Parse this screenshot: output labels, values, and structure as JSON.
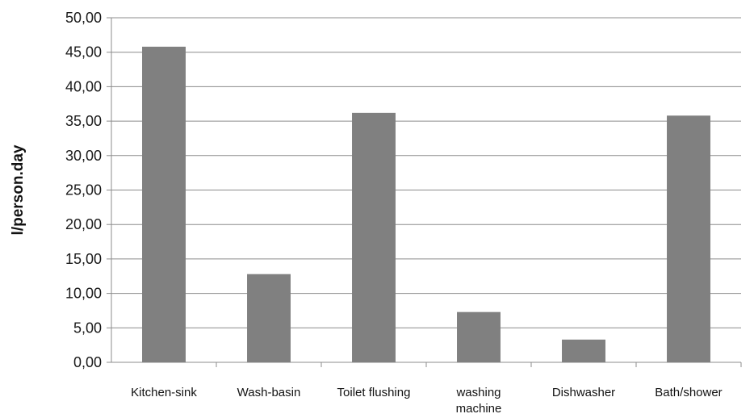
{
  "chart_data": {
    "type": "bar",
    "title": "",
    "xlabel": "",
    "ylabel": "l/person.day",
    "ylim": [
      0,
      50
    ],
    "ytick_step": 5,
    "ytick_labels": [
      "0,00",
      "5,00",
      "10,00",
      "15,00",
      "20,00",
      "25,00",
      "30,00",
      "35,00",
      "40,00",
      "45,00",
      "50,00"
    ],
    "categories": [
      [
        "Kitchen-sink"
      ],
      [
        "Wash-basin"
      ],
      [
        "Toilet flushing"
      ],
      [
        "washing",
        "machine"
      ],
      [
        "Dishwasher"
      ],
      [
        "Bath/shower"
      ]
    ],
    "values": [
      45.8,
      12.8,
      36.2,
      7.3,
      3.3,
      35.8
    ],
    "grid": true,
    "legend": "none",
    "colors": {
      "bar": "#808080",
      "grid": "#8c8c8c",
      "axis": "#8c8c8c"
    }
  }
}
